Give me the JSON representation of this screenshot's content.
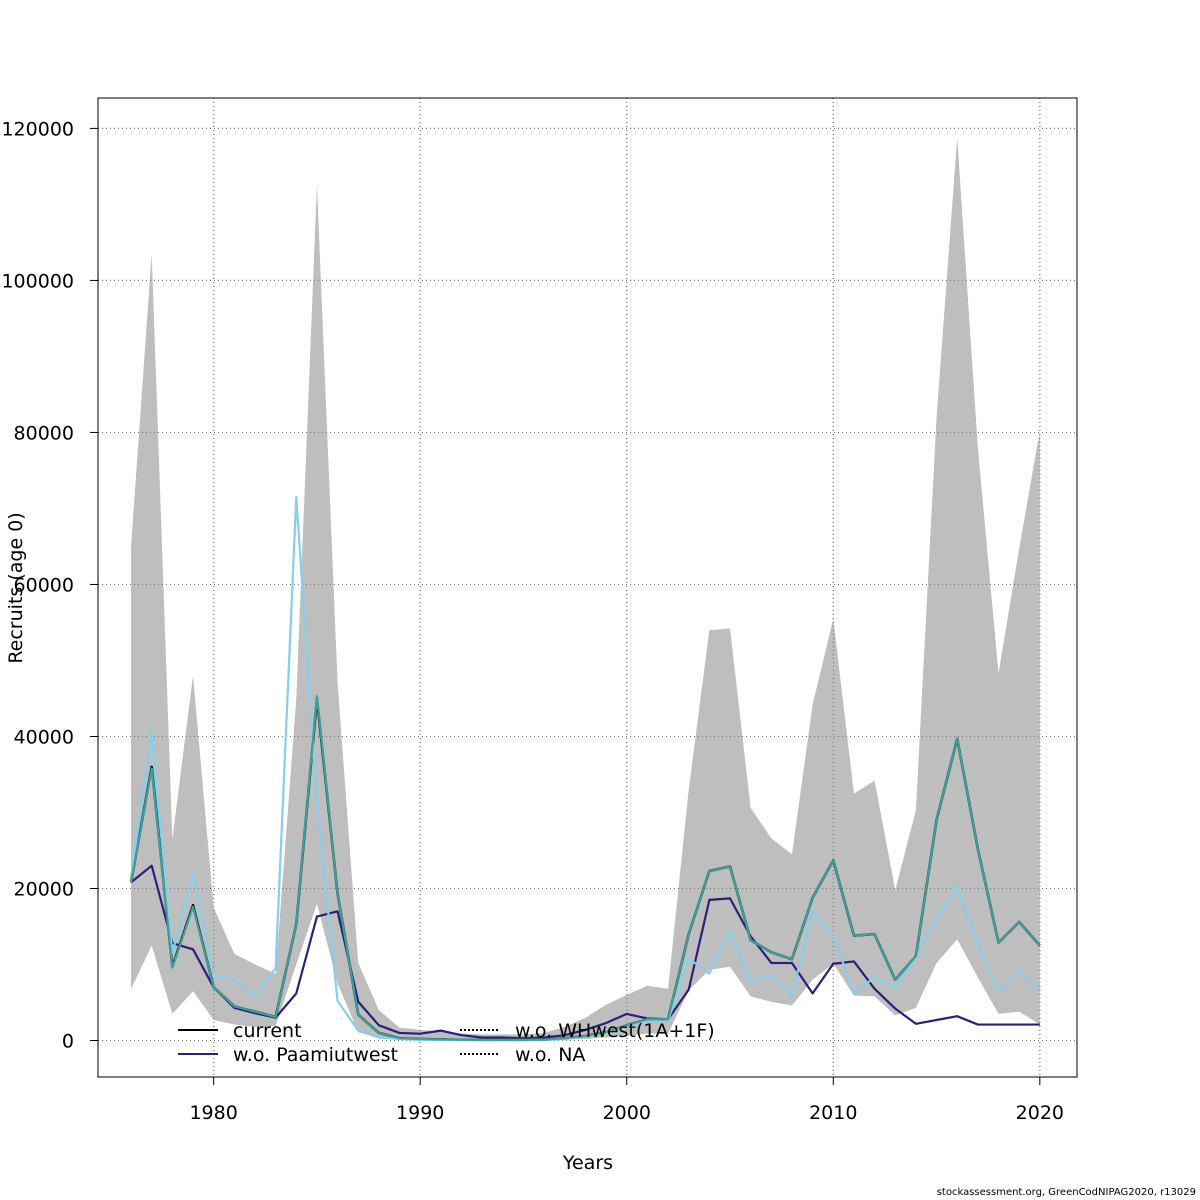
{
  "chart_data": {
    "type": "line",
    "title": "",
    "xlabel": "Years",
    "ylabel": "Recruits (age 0)",
    "xlim": [
      1974.4,
      2021.8
    ],
    "ylim": [
      -4800,
      124000
    ],
    "grid": true,
    "x_ticks": [
      1980,
      1990,
      2000,
      2010,
      2020
    ],
    "x_tick_labels": [
      "1980",
      "1990",
      "2000",
      "2010",
      "2020"
    ],
    "y_ticks": [
      0,
      20000,
      40000,
      60000,
      80000,
      100000,
      120000
    ],
    "y_tick_labels": [
      "0",
      "20000",
      "40000",
      "60000",
      "80000",
      "100000",
      "120000"
    ],
    "x": [
      1976,
      1977,
      1978,
      1979,
      1980,
      1981,
      1982,
      1983,
      1984,
      1985,
      1986,
      1987,
      1988,
      1989,
      1990,
      1991,
      1992,
      1993,
      1994,
      1995,
      1996,
      1997,
      1998,
      1999,
      2000,
      2001,
      2002,
      2003,
      2004,
      2005,
      2006,
      2007,
      2008,
      2009,
      2010,
      2011,
      2012,
      2013,
      2014,
      2015,
      2016,
      2017,
      2018,
      2019,
      2020
    ],
    "confidence_band": {
      "color": "#bebebe",
      "upper": [
        65000,
        103500,
        26500,
        48000,
        17500,
        11400,
        10000,
        8800,
        45000,
        112500,
        47000,
        10200,
        4000,
        1700,
        1400,
        1200,
        900,
        800,
        800,
        800,
        1000,
        1800,
        3000,
        4700,
        6000,
        7200,
        6800,
        33000,
        54000,
        54200,
        30600,
        26600,
        24500,
        44200,
        55500,
        32500,
        34200,
        19800,
        30300,
        82000,
        118800,
        78000,
        48300,
        64700,
        80200
      ],
      "lower": [
        6800,
        12500,
        3500,
        6500,
        2700,
        2100,
        1800,
        1900,
        10000,
        18000,
        7500,
        1100,
        300,
        100,
        50,
        30,
        20,
        20,
        20,
        20,
        30,
        100,
        200,
        400,
        600,
        900,
        900,
        6600,
        9300,
        9700,
        5800,
        5100,
        4600,
        8000,
        10100,
        5900,
        5800,
        3300,
        4300,
        10200,
        13300,
        8300,
        3500,
        3800,
        2100
      ]
    },
    "series": [
      {
        "name": "current",
        "color": "#000000",
        "dash": "solid",
        "values": [
          20800,
          36000,
          9700,
          17800,
          7000,
          4500,
          3800,
          3100,
          15300,
          45000,
          19300,
          3400,
          1000,
          300,
          200,
          150,
          100,
          80,
          80,
          80,
          120,
          300,
          600,
          1100,
          2000,
          2800,
          2800,
          14000,
          22300,
          22900,
          13200,
          11600,
          10700,
          18800,
          23700,
          13800,
          14000,
          8000,
          11100,
          29000,
          39700,
          25200,
          12900,
          15600,
          12500
        ]
      },
      {
        "name": "w.o. Paamiutwest",
        "color": "#2c1f7a",
        "dash": "solid",
        "values": [
          20800,
          23000,
          12800,
          12000,
          7000,
          4300,
          3600,
          3000,
          6200,
          16300,
          17000,
          5100,
          2000,
          1000,
          900,
          1300,
          700,
          400,
          400,
          300,
          400,
          700,
          1400,
          2300,
          3500,
          2900,
          2800,
          6700,
          18500,
          18700,
          13700,
          10200,
          10200,
          6200,
          10100,
          10400,
          6800,
          4200,
          2200,
          2700,
          3200,
          2100,
          2100,
          2100,
          2100
        ]
      },
      {
        "name": "w.o. WHwest(1A+1F)",
        "color": "#87ceeb",
        "dash": "solid",
        "values": [
          21500,
          40500,
          11500,
          22000,
          8500,
          8000,
          6000,
          9500,
          71500,
          31000,
          5200,
          1300,
          400,
          200,
          100,
          80,
          70,
          60,
          60,
          60,
          90,
          200,
          500,
          1000,
          1800,
          2600,
          2600,
          10800,
          8800,
          14500,
          7700,
          8600,
          6000,
          17000,
          13800,
          6200,
          8300,
          6900,
          11000,
          16000,
          20400,
          12800,
          6500,
          9300,
          6700
        ]
      },
      {
        "name": "w.o. NA",
        "color": "#3f9f9b",
        "dash": "solid",
        "values": [
          20800,
          35800,
          9600,
          17600,
          7000,
          4500,
          3800,
          3100,
          15300,
          45300,
          19300,
          3400,
          1000,
          300,
          200,
          150,
          100,
          80,
          80,
          80,
          120,
          300,
          600,
          1100,
          2000,
          2800,
          2800,
          14000,
          22300,
          22900,
          13200,
          11600,
          10700,
          18800,
          23700,
          13800,
          14000,
          8000,
          11100,
          29000,
          39700,
          25200,
          12900,
          15600,
          12500
        ]
      }
    ],
    "legend": {
      "placement": "bottom-left",
      "entries": [
        {
          "label": "current",
          "color": "#000000",
          "style": "solid"
        },
        {
          "label": "w.o. Paamiutwest",
          "color": "#2c1f7a",
          "style": "solid"
        },
        {
          "label": "w.o. WHwest(1A+1F)",
          "color": "#000000",
          "style": "dotted"
        },
        {
          "label": "w.o. NA",
          "color": "#000000",
          "style": "dotted"
        }
      ]
    }
  },
  "footer": "stockassessment.org, GreenCodNIPAG2020, r13029"
}
